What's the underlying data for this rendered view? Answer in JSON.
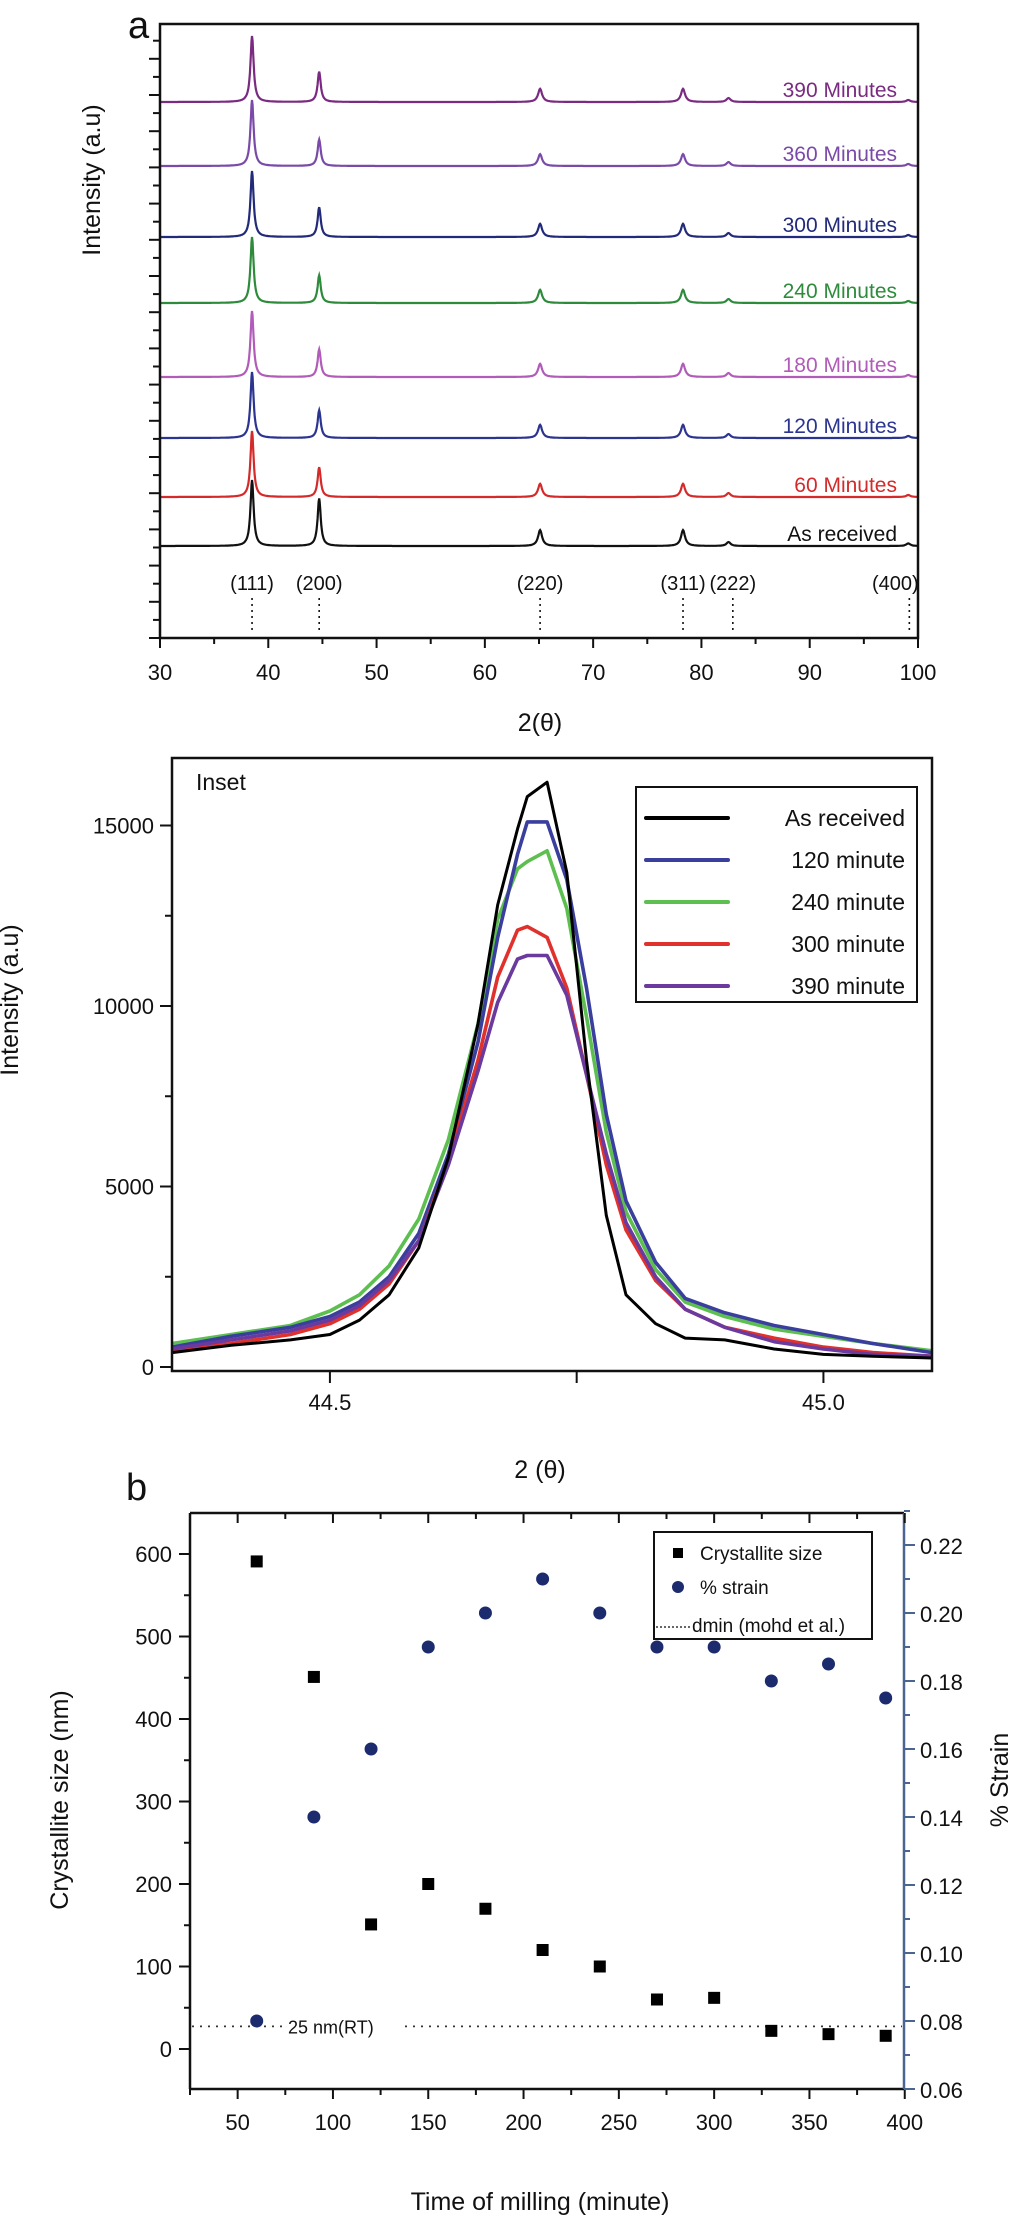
{
  "chart_data": [
    {
      "id": "panel_a",
      "type": "line",
      "panel_label": "a",
      "title": "",
      "xlabel": "2(θ)",
      "ylabel": "Intensity (a.u)",
      "xlim": [
        30,
        100
      ],
      "xticks": [
        30,
        40,
        50,
        60,
        70,
        80,
        90,
        100
      ],
      "xtick_labels": [
        "30",
        "40",
        "50",
        "60",
        "70",
        "80",
        "90",
        "100"
      ],
      "y_ticks_labeled": false,
      "grid": false,
      "peak_positions": [
        38.5,
        44.7,
        65.1,
        78.3,
        82.5,
        99.1
      ],
      "hkl_markers": [
        {
          "label": "(111)",
          "x": 38.5
        },
        {
          "label": "(200)",
          "x": 44.7
        },
        {
          "label": "(220)",
          "x": 65.1
        },
        {
          "label": "(311)",
          "x": 78.3
        },
        {
          "label": "(222)",
          "x": 82.9
        },
        {
          "label": "(400)",
          "x": 99.2
        }
      ],
      "series": [
        {
          "name": "As received",
          "color": "#111111",
          "offset_rank": 0,
          "relative_peak_heights": [
            1.0,
            0.72,
            0.24,
            0.24,
            0.06,
            0.04
          ]
        },
        {
          "name": "60 Minutes",
          "color": "#d42a2a",
          "offset_rank": 1,
          "relative_peak_heights": [
            1.0,
            0.45,
            0.2,
            0.2,
            0.06,
            0.03
          ]
        },
        {
          "name": "120 Minutes",
          "color": "#2b3590",
          "offset_rank": 2,
          "relative_peak_heights": [
            1.0,
            0.42,
            0.2,
            0.2,
            0.06,
            0.03
          ]
        },
        {
          "name": "180 Minutes",
          "color": "#b05cb8",
          "offset_rank": 3,
          "relative_peak_heights": [
            1.0,
            0.42,
            0.2,
            0.2,
            0.06,
            0.03
          ]
        },
        {
          "name": "240 Minutes",
          "color": "#2e8b3c",
          "offset_rank": 4,
          "relative_peak_heights": [
            1.0,
            0.42,
            0.2,
            0.2,
            0.06,
            0.03
          ]
        },
        {
          "name": "300 Minutes",
          "color": "#222a7a",
          "offset_rank": 5,
          "relative_peak_heights": [
            1.0,
            0.45,
            0.2,
            0.2,
            0.06,
            0.03
          ]
        },
        {
          "name": "360 Minutes",
          "color": "#7a4aa8",
          "offset_rank": 6,
          "relative_peak_heights": [
            1.0,
            0.4,
            0.18,
            0.18,
            0.06,
            0.03
          ]
        },
        {
          "name": "390 Minutes",
          "color": "#7a2a80",
          "offset_rank": 7,
          "relative_peak_heights": [
            1.0,
            0.46,
            0.2,
            0.2,
            0.06,
            0.03
          ]
        }
      ]
    },
    {
      "id": "inset",
      "type": "line",
      "panel_label": "Inset",
      "title": "",
      "xlabel": "2 (θ)",
      "ylabel": "Intensity (a.u)",
      "xlim": [
        44.34,
        45.11
      ],
      "ylim": [
        0,
        16700
      ],
      "xticks": [
        44.5,
        44.75,
        45.0
      ],
      "xtick_labels": [
        "44.5",
        "",
        "45.0"
      ],
      "yticks": [
        0,
        2500,
        5000,
        7500,
        10000,
        12500,
        15000
      ],
      "ytick_labels": [
        "0",
        "",
        "5000",
        "",
        "10000",
        "",
        "15000"
      ],
      "legend_position": "top-right",
      "grid": false,
      "x": [
        44.34,
        44.4,
        44.46,
        44.5,
        44.53,
        44.56,
        44.59,
        44.62,
        44.65,
        44.67,
        44.69,
        44.7,
        44.72,
        44.74,
        44.76,
        44.78,
        44.8,
        44.83,
        44.86,
        44.9,
        44.95,
        45.0,
        45.05,
        45.11
      ],
      "series": [
        {
          "name": "As received",
          "color": "#000000",
          "values": [
            400,
            600,
            750,
            900,
            1300,
            2000,
            3300,
            5800,
            9500,
            12800,
            14900,
            15800,
            16200,
            13700,
            8500,
            4200,
            2000,
            1200,
            800,
            750,
            500,
            350,
            300,
            250
          ]
        },
        {
          "name": "120 minute",
          "color": "#3a3f9e",
          "values": [
            550,
            850,
            1100,
            1400,
            1800,
            2500,
            3700,
            5900,
            9000,
            11900,
            14200,
            15100,
            15100,
            13500,
            10500,
            7000,
            4600,
            2900,
            1900,
            1500,
            1150,
            900,
            650,
            400
          ]
        },
        {
          "name": "240 minute",
          "color": "#5cbf4f",
          "values": [
            650,
            900,
            1150,
            1550,
            2000,
            2800,
            4100,
            6300,
            9500,
            12400,
            13800,
            14000,
            14300,
            12700,
            9700,
            6500,
            4300,
            2700,
            1800,
            1400,
            1050,
            850,
            650,
            450
          ]
        },
        {
          "name": "300 minute",
          "color": "#e0312c",
          "values": [
            450,
            650,
            900,
            1200,
            1600,
            2300,
            3500,
            5700,
            8500,
            10800,
            12100,
            12200,
            11900,
            10500,
            8100,
            5600,
            3800,
            2400,
            1600,
            1100,
            800,
            550,
            400,
            300
          ]
        },
        {
          "name": "390 minute",
          "color": "#6a3a9e",
          "values": [
            500,
            750,
            1000,
            1300,
            1700,
            2400,
            3500,
            5600,
            8200,
            10100,
            11300,
            11400,
            11400,
            10300,
            8100,
            5900,
            4000,
            2500,
            1600,
            1100,
            700,
            500,
            350,
            300
          ]
        }
      ]
    },
    {
      "id": "panel_b",
      "type": "scatter",
      "panel_label": "b",
      "title": "",
      "xlabel": "Time of milling (minute)",
      "ylabel": "Crystallite size (nm)",
      "ylabel_right": "% Strain",
      "xlim": [
        25,
        400
      ],
      "ylim": [
        -50,
        650
      ],
      "ylim_right": [
        0.06,
        0.23
      ],
      "xticks": [
        50,
        100,
        150,
        200,
        250,
        300,
        350,
        400
      ],
      "xtick_labels": [
        "50",
        "100",
        "150",
        "200",
        "250",
        "300",
        "350",
        "400"
      ],
      "yticks": [
        0,
        100,
        200,
        300,
        400,
        500,
        600
      ],
      "ytick_labels": [
        "0",
        "100",
        "200",
        "300",
        "400",
        "500",
        "600"
      ],
      "yticks_right": [
        0.06,
        0.08,
        0.1,
        0.12,
        0.14,
        0.16,
        0.18,
        0.2,
        0.22
      ],
      "ytick_labels_right": [
        "0.06",
        "0.08",
        "0.10",
        "0.12",
        "0.14",
        "0.16",
        "0.18",
        "0.20",
        "0.22"
      ],
      "legend_position": "top-right",
      "grid": false,
      "x": [
        60,
        90,
        120,
        150,
        180,
        210,
        240,
        270,
        300,
        330,
        360,
        390
      ],
      "series": [
        {
          "name": "Crystallite size",
          "marker": "square",
          "color": "#000000",
          "axis": "left",
          "values": [
            591,
            451,
            151,
            200,
            170,
            120,
            100,
            60,
            62,
            22,
            18,
            16
          ]
        },
        {
          "name": "% strain",
          "marker": "circle",
          "color": "#1c2a6e",
          "axis": "right",
          "values": [
            0.08,
            0.14,
            0.16,
            0.19,
            0.2,
            0.21,
            0.2,
            0.19,
            0.19,
            0.18,
            0.185,
            0.175
          ]
        }
      ],
      "reference_line": {
        "name": "dmin (mohd et al.)",
        "value": 25,
        "axis": "left",
        "style": "dotted",
        "annotation": "25 nm(RT)"
      }
    }
  ]
}
